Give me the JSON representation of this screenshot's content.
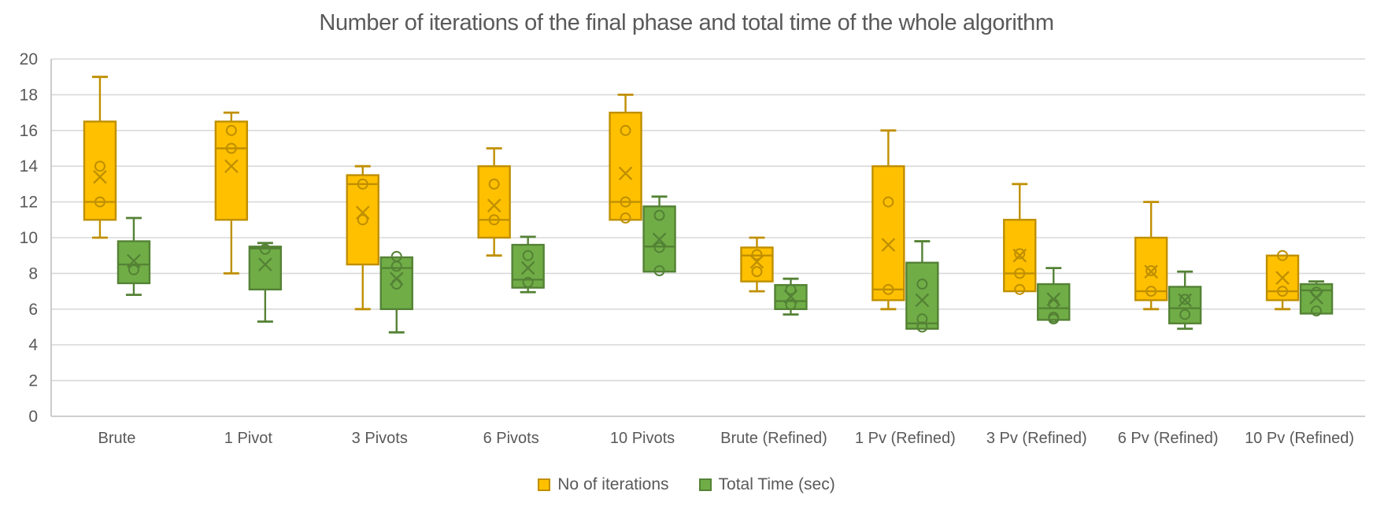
{
  "title": "Number of iterations of the final phase and total time of the whole algorithm",
  "colors": {
    "iterations_fill": "#FFC000",
    "iterations_stroke": "#BF8F00",
    "time_fill": "#70AD47",
    "time_stroke": "#548235",
    "gridline": "#D9D9D9",
    "axis_line": "#BFBFBF",
    "text": "#595959"
  },
  "chart_data": {
    "type": "boxplot",
    "title": "Number of iterations of the final phase and total time of the whole algorithm",
    "categories": [
      "Brute",
      "1 Pivot",
      "3 Pivots",
      "6 Pivots",
      "10 Pivots",
      "Brute (Refined)",
      "1 Pv (Refined)",
      "3 Pv (Refined)",
      "6 Pv (Refined)",
      "10 Pv (Refined)"
    ],
    "y_axis": {
      "min": 0,
      "max": 20,
      "step": 2,
      "ticks": [
        0,
        2,
        4,
        6,
        8,
        10,
        12,
        14,
        16,
        18,
        20
      ]
    },
    "grid": "horizontal",
    "legend_position": "bottom",
    "series": [
      {
        "name": "No of iterations",
        "fill": "#FFC000",
        "stroke": "#BF8F00",
        "boxes": [
          {
            "min": 10,
            "q1": 11,
            "median": 12,
            "q3": 16.5,
            "max": 19,
            "mean": 13.4,
            "points": [
              14,
              12
            ]
          },
          {
            "min": 8,
            "q1": 11,
            "median": 15,
            "q3": 16.5,
            "max": 17,
            "mean": 14,
            "points": [
              16,
              15
            ]
          },
          {
            "min": 6,
            "q1": 8.5,
            "median": 13,
            "q3": 13.5,
            "max": 14,
            "mean": 11.4,
            "points": [
              13,
              11
            ]
          },
          {
            "min": 9,
            "q1": 10,
            "median": 11,
            "q3": 14,
            "max": 15,
            "mean": 11.8,
            "points": [
              13,
              11
            ]
          },
          {
            "min": 11,
            "q1": 11,
            "median": 12,
            "q3": 17,
            "max": 18,
            "mean": 13.6,
            "points": [
              16,
              12,
              11.1
            ]
          },
          {
            "min": 7,
            "q1": 7.55,
            "median": 9,
            "q3": 9.45,
            "max": 10,
            "mean": 8.65,
            "points": [
              9.05,
              8.1
            ]
          },
          {
            "min": 6,
            "q1": 6.5,
            "median": 7.1,
            "q3": 14,
            "max": 16,
            "mean": 9.6,
            "points": [
              12,
              7.1
            ]
          },
          {
            "min": 7,
            "q1": 7,
            "median": 8,
            "q3": 11,
            "max": 13,
            "mean": 9,
            "points": [
              9.1,
              8,
              7.1
            ]
          },
          {
            "min": 6,
            "q1": 6.5,
            "median": 7,
            "q3": 10,
            "max": 12,
            "mean": 8.1,
            "points": [
              8.15,
              7
            ]
          },
          {
            "min": 6,
            "q1": 6.5,
            "median": 7,
            "q3": 9,
            "max": 9,
            "mean": 7.75,
            "points": [
              9,
              7
            ]
          }
        ]
      },
      {
        "name": "Total Time (sec)",
        "fill": "#70AD47",
        "stroke": "#548235",
        "boxes": [
          {
            "min": 6.8,
            "q1": 7.45,
            "median": 8.5,
            "q3": 9.8,
            "max": 11.1,
            "mean": 8.7,
            "points": [
              8.2
            ]
          },
          {
            "min": 5.3,
            "q1": 7.1,
            "median": 9.4,
            "q3": 9.5,
            "max": 9.7,
            "mean": 8.5,
            "points": [
              9.35
            ]
          },
          {
            "min": 4.7,
            "q1": 6,
            "median": 8.3,
            "q3": 8.9,
            "max": 8.9,
            "mean": 7.7,
            "points": [
              8.95,
              8.4,
              7.4
            ]
          },
          {
            "min": 6.95,
            "q1": 7.2,
            "median": 7.65,
            "q3": 9.6,
            "max": 10.05,
            "mean": 8.3,
            "points": [
              9,
              7.5
            ]
          },
          {
            "min": 8.1,
            "q1": 8.1,
            "median": 9.5,
            "q3": 11.75,
            "max": 12.3,
            "mean": 9.9,
            "points": [
              11.25,
              9.45,
              8.15
            ]
          },
          {
            "min": 5.7,
            "q1": 6,
            "median": 6.45,
            "q3": 7.35,
            "max": 7.7,
            "mean": 6.7,
            "points": [
              7.1,
              6.25
            ]
          },
          {
            "min": 4.9,
            "q1": 4.9,
            "median": 5.2,
            "q3": 8.6,
            "max": 9.8,
            "mean": 6.5,
            "points": [
              7.4,
              5.45,
              5
            ]
          },
          {
            "min": 5.4,
            "q1": 5.4,
            "median": 6.05,
            "q3": 7.4,
            "max": 8.3,
            "mean": 6.55,
            "points": [
              6.3,
              5.55,
              5.45
            ]
          },
          {
            "min": 4.9,
            "q1": 5.2,
            "median": 6.05,
            "q3": 7.25,
            "max": 8.1,
            "mean": 6.5,
            "points": [
              6.55,
              5.7
            ]
          },
          {
            "min": 5.75,
            "q1": 5.75,
            "median": 7.05,
            "q3": 7.4,
            "max": 7.55,
            "mean": 6.65,
            "points": [
              6.95,
              5.9
            ]
          }
        ]
      }
    ]
  },
  "legend": [
    {
      "label": "No of iterations"
    },
    {
      "label": "Total Time (sec)"
    }
  ]
}
